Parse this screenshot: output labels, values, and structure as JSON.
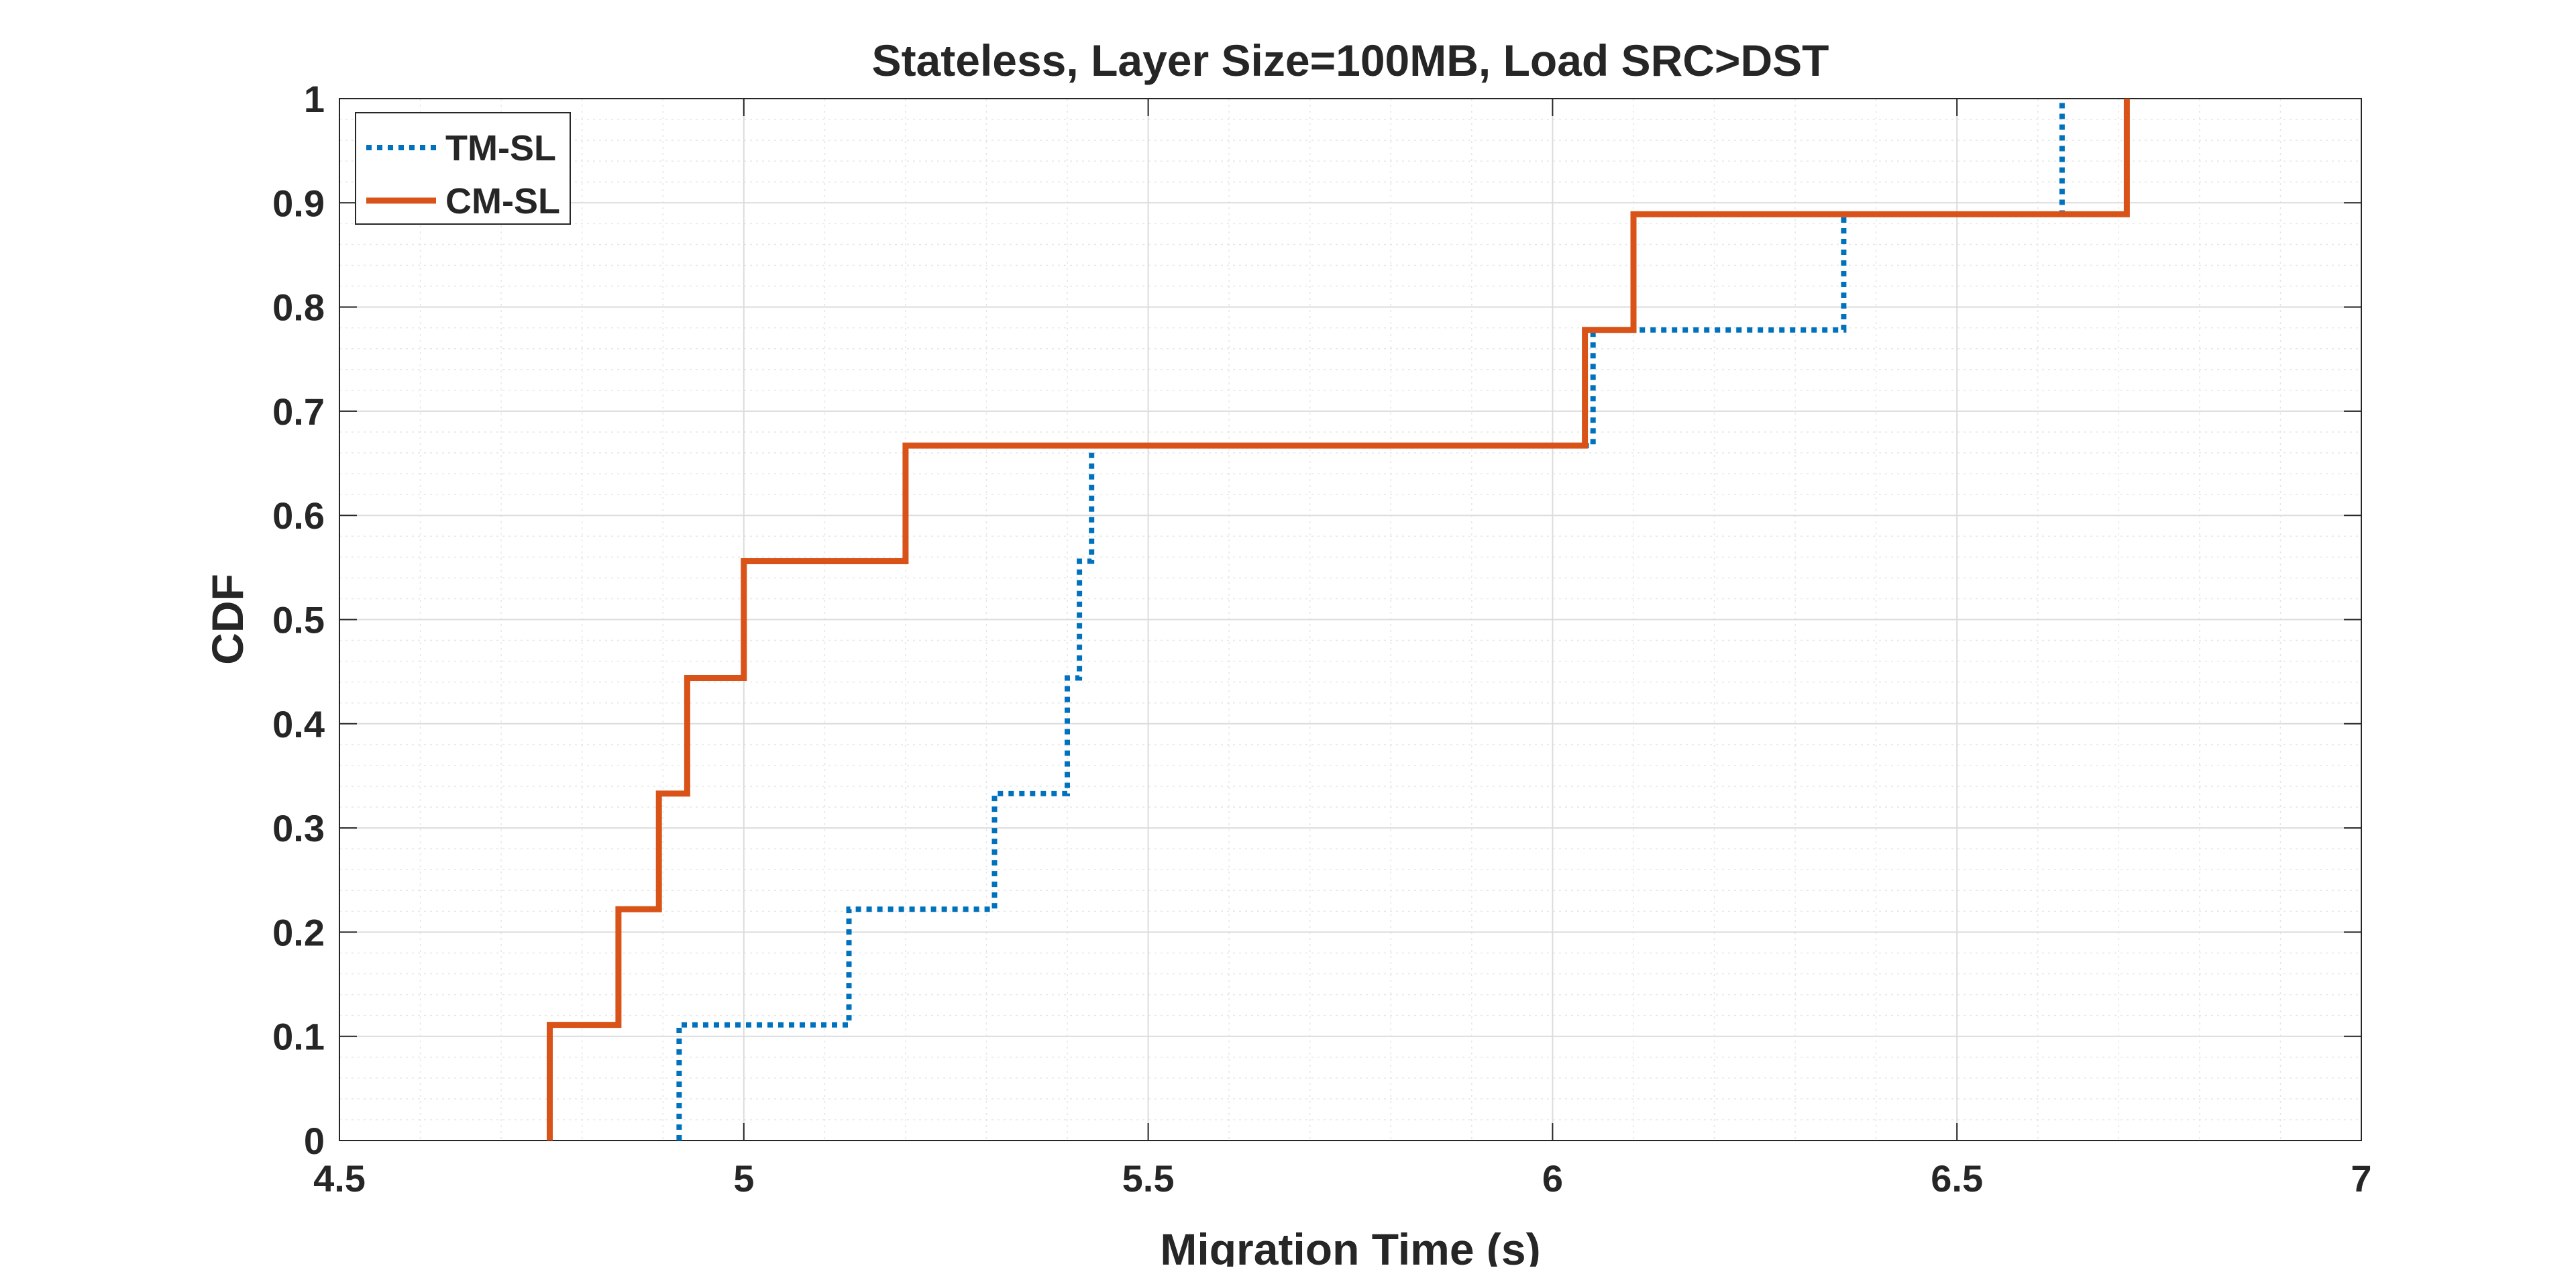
{
  "chart_data": {
    "type": "line",
    "title": "Stateless, Layer Size=100MB, Load SRC>DST",
    "xlabel": "Migration Time (s)",
    "ylabel": "CDF",
    "xlim": [
      4.5,
      7
    ],
    "ylim": [
      0,
      1
    ],
    "xticks": [
      4.5,
      5,
      5.5,
      6,
      6.5,
      7
    ],
    "xtick_labels": [
      "4.5",
      "5",
      "5.5",
      "6",
      "6.5",
      "7"
    ],
    "yticks": [
      0,
      0.1,
      0.2,
      0.3,
      0.4,
      0.5,
      0.6,
      0.7,
      0.8,
      0.9,
      1
    ],
    "ytick_labels": [
      "0",
      "0.1",
      "0.2",
      "0.3",
      "0.4",
      "0.5",
      "0.6",
      "0.7",
      "0.8",
      "0.9",
      "1"
    ],
    "grid": true,
    "minor_grid": true,
    "legend_position": "top-left",
    "series": [
      {
        "name": "TM-SL",
        "color": "#0072BD",
        "line_style": "dotted",
        "x": [
          4.92,
          4.92,
          5.13,
          5.13,
          5.31,
          5.31,
          5.4,
          5.4,
          5.415,
          5.415,
          5.43,
          5.43,
          6.05,
          6.05,
          6.065,
          6.065,
          6.36,
          6.36,
          6.63,
          6.63
        ],
        "y": [
          0,
          0.111,
          0.111,
          0.222,
          0.222,
          0.333,
          0.333,
          0.444,
          0.444,
          0.556,
          0.556,
          0.667,
          0.667,
          0.778,
          0.778,
          0.778,
          0.778,
          0.889,
          0.889,
          1.0
        ]
      },
      {
        "name": "CM-SL",
        "color": "#D95319",
        "line_style": "solid",
        "x": [
          4.76,
          4.76,
          4.845,
          4.845,
          4.895,
          4.895,
          4.93,
          4.93,
          5.0,
          5.0,
          5.2,
          5.2,
          6.04,
          6.04,
          6.1,
          6.1,
          6.71,
          6.71
        ],
        "y": [
          0,
          0.111,
          0.111,
          0.222,
          0.222,
          0.333,
          0.333,
          0.444,
          0.444,
          0.556,
          0.556,
          0.667,
          0.667,
          0.778,
          0.778,
          0.889,
          0.889,
          1.0
        ]
      }
    ]
  }
}
